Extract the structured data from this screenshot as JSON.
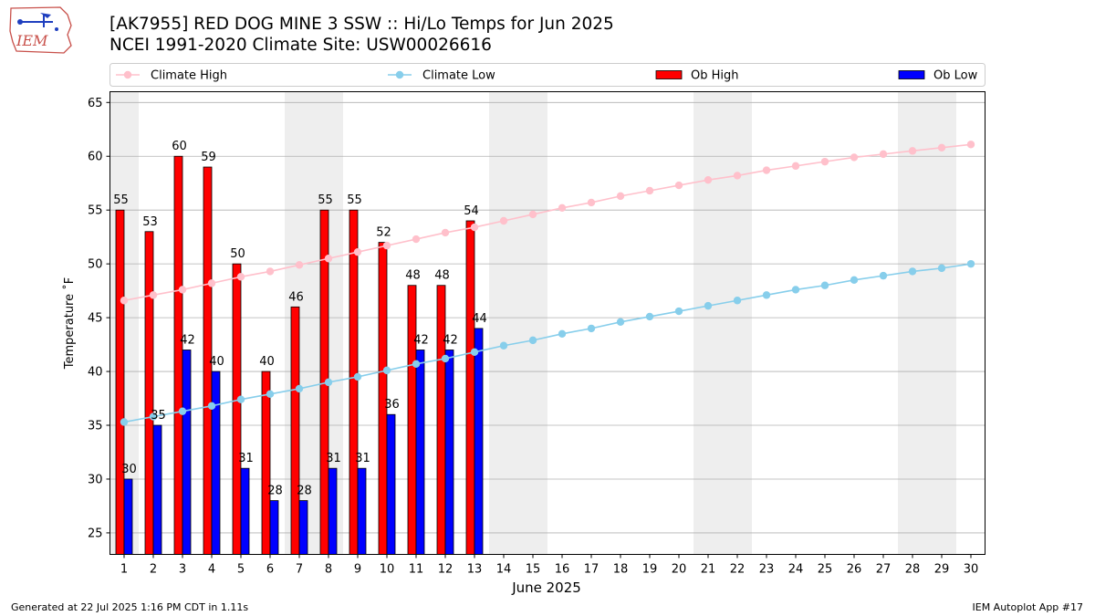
{
  "header": {
    "title_line1": "[AK7955] RED DOG MINE 3 SSW :: Hi/Lo Temps for Jun 2025",
    "title_line2": "NCEI 1991-2020 Climate Site: USW00026616",
    "logo_text": "IEM"
  },
  "footer": {
    "generated": "Generated at 22 Jul 2025 1:16 PM CDT in 1.11s",
    "app": "IEM Autoplot App #17"
  },
  "chart_data": {
    "type": "bar",
    "xlabel": "June 2025",
    "ylabel": "Temperature ˚F",
    "ylim": [
      23,
      66
    ],
    "yticks": [
      25,
      30,
      35,
      40,
      45,
      50,
      55,
      60,
      65
    ],
    "grid": true,
    "legend_placement": "top, above plot",
    "weekend_shading_days": [
      [
        1,
        1
      ],
      [
        7,
        8
      ],
      [
        14,
        15
      ],
      [
        21,
        22
      ],
      [
        28,
        29
      ]
    ],
    "days": [
      1,
      2,
      3,
      4,
      5,
      6,
      7,
      8,
      9,
      10,
      11,
      12,
      13,
      14,
      15,
      16,
      17,
      18,
      19,
      20,
      21,
      22,
      23,
      24,
      25,
      26,
      27,
      28,
      29,
      30
    ],
    "series": [
      {
        "name": "Climate High",
        "kind": "line",
        "color": "#ffc0cb",
        "values": [
          46.6,
          47.1,
          47.6,
          48.2,
          48.8,
          49.3,
          49.9,
          50.5,
          51.1,
          51.7,
          52.3,
          52.9,
          53.4,
          54.0,
          54.6,
          55.2,
          55.7,
          56.3,
          56.8,
          57.3,
          57.8,
          58.2,
          58.7,
          59.1,
          59.5,
          59.9,
          60.2,
          60.5,
          60.8,
          61.1
        ]
      },
      {
        "name": "Climate Low",
        "kind": "line",
        "color": "#87ceeb",
        "values": [
          35.3,
          35.8,
          36.3,
          36.8,
          37.4,
          37.9,
          38.4,
          39.0,
          39.5,
          40.1,
          40.7,
          41.2,
          41.8,
          42.4,
          42.9,
          43.5,
          44.0,
          44.6,
          45.1,
          45.6,
          46.1,
          46.6,
          47.1,
          47.6,
          48.0,
          48.5,
          48.9,
          49.3,
          49.6,
          50.0
        ]
      },
      {
        "name": "Ob High",
        "kind": "bar",
        "color": "#ff0000",
        "values": [
          55,
          53,
          60,
          59,
          50,
          40,
          46,
          55,
          55,
          52,
          48,
          48,
          54
        ]
      },
      {
        "name": "Ob Low",
        "kind": "bar",
        "color": "#0000ff",
        "values": [
          30,
          35,
          42,
          40,
          31,
          28,
          28,
          31,
          31,
          36,
          42,
          42,
          44
        ]
      }
    ]
  }
}
